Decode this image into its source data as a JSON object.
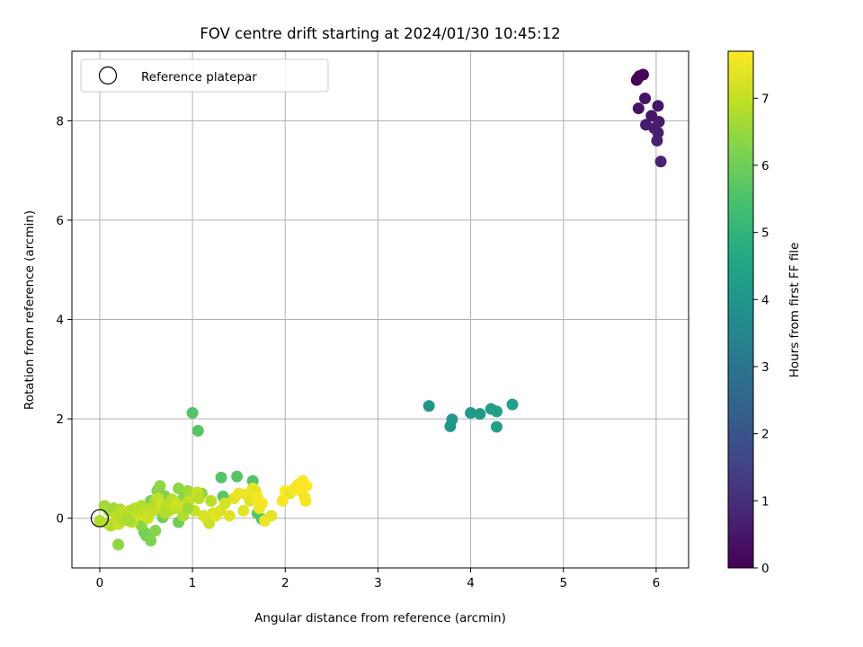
{
  "chart_data": {
    "type": "scatter",
    "title": "FOV centre drift starting at 2024/01/30 10:45:12",
    "xlabel": "Angular distance from reference (arcmin)",
    "ylabel": "Rotation from reference (arcmin)",
    "xlim": [
      -0.3,
      6.35
    ],
    "ylim": [
      -1.0,
      9.4
    ],
    "xticks": [
      0,
      1,
      2,
      3,
      4,
      5,
      6
    ],
    "yticks": [
      0,
      2,
      4,
      6,
      8
    ],
    "grid": true,
    "legend": {
      "placement": "upper left",
      "entries": [
        {
          "label": "Reference platepar",
          "marker": "open-circle",
          "x": 0,
          "y": 0
        }
      ]
    },
    "colorbar": {
      "label": "Hours from first FF file",
      "colormap": "viridis",
      "range": [
        0,
        7.7
      ],
      "ticks": [
        0,
        1,
        2,
        3,
        4,
        5,
        6,
        7
      ]
    },
    "series": [
      {
        "points": [
          [
            5.8,
            8.85,
            0.05
          ],
          [
            5.82,
            8.9,
            0.08
          ],
          [
            5.86,
            8.93,
            0.1
          ],
          [
            5.79,
            8.82,
            0.12
          ],
          [
            5.81,
            8.25,
            0.35
          ],
          [
            5.88,
            8.45,
            0.4
          ],
          [
            5.95,
            8.1,
            0.45
          ],
          [
            6.02,
            8.3,
            0.48
          ],
          [
            6.03,
            7.98,
            0.55
          ],
          [
            5.89,
            7.92,
            0.58
          ],
          [
            5.98,
            7.85,
            0.62
          ],
          [
            6.02,
            7.76,
            0.66
          ],
          [
            6.01,
            7.6,
            0.7
          ],
          [
            6.05,
            7.18,
            0.75
          ],
          [
            3.55,
            2.26,
            4.0
          ],
          [
            3.78,
            1.85,
            4.05
          ],
          [
            3.8,
            1.99,
            4.1
          ],
          [
            4.0,
            2.12,
            4.15
          ],
          [
            4.1,
            2.1,
            4.2
          ],
          [
            4.22,
            2.2,
            4.25
          ],
          [
            4.28,
            2.15,
            4.3
          ],
          [
            4.28,
            1.84,
            4.35
          ],
          [
            4.45,
            2.29,
            4.4
          ],
          [
            1.0,
            2.12,
            5.6
          ],
          [
            1.06,
            1.76,
            5.65
          ],
          [
            1.31,
            0.82,
            5.6
          ],
          [
            1.48,
            0.84,
            5.65
          ],
          [
            1.65,
            0.75,
            5.55
          ],
          [
            1.33,
            0.44,
            5.7
          ],
          [
            1.75,
            -0.02,
            5.5
          ],
          [
            1.7,
            0.1,
            5.6
          ],
          [
            0.48,
            -0.28,
            6.0
          ],
          [
            0.5,
            -0.35,
            6.1
          ],
          [
            0.55,
            -0.45,
            6.2
          ],
          [
            0.6,
            -0.25,
            6.3
          ],
          [
            0.2,
            -0.53,
            6.4
          ],
          [
            0.45,
            -0.15,
            6.3
          ],
          [
            0.55,
            0.35,
            6.1
          ],
          [
            0.62,
            0.55,
            6.3
          ],
          [
            0.65,
            0.65,
            6.4
          ],
          [
            0.7,
            0.45,
            6.2
          ],
          [
            0.75,
            0.3,
            6.5
          ],
          [
            0.85,
            0.6,
            6.4
          ],
          [
            0.9,
            0.4,
            6.3
          ],
          [
            0.95,
            0.55,
            6.6
          ],
          [
            1.0,
            0.45,
            6.6
          ],
          [
            1.1,
            0.5,
            6.4
          ],
          [
            0.85,
            -0.08,
            6.0
          ],
          [
            0.68,
            0.02,
            6.0
          ],
          [
            0.8,
            0.2,
            6.5
          ],
          [
            0.9,
            0.1,
            6.7
          ],
          [
            0.0,
            -0.05,
            6.8
          ],
          [
            0.05,
            0.25,
            6.6
          ],
          [
            0.08,
            -0.1,
            6.9
          ],
          [
            0.1,
            0.15,
            6.7
          ],
          [
            0.12,
            -0.15,
            6.8
          ],
          [
            0.15,
            0.2,
            6.6
          ],
          [
            0.18,
            0.05,
            6.9
          ],
          [
            0.2,
            -0.12,
            7.0
          ],
          [
            0.22,
            0.18,
            6.8
          ],
          [
            0.25,
            -0.05,
            6.9
          ],
          [
            0.28,
            0.12,
            7.0
          ],
          [
            0.3,
            0.0,
            6.7
          ],
          [
            0.32,
            0.15,
            6.9
          ],
          [
            0.35,
            -0.08,
            7.0
          ],
          [
            0.38,
            0.2,
            6.8
          ],
          [
            0.4,
            0.05,
            7.1
          ],
          [
            0.42,
            0.18,
            6.9
          ],
          [
            0.45,
            0.25,
            6.8
          ],
          [
            0.48,
            0.1,
            7.0
          ],
          [
            0.52,
            0.0,
            7.1
          ],
          [
            0.55,
            0.2,
            6.9
          ],
          [
            0.58,
            0.15,
            7.0
          ],
          [
            0.6,
            0.35,
            6.8
          ],
          [
            0.63,
            0.4,
            7.0
          ],
          [
            0.66,
            0.28,
            7.1
          ],
          [
            0.72,
            0.25,
            6.9
          ],
          [
            0.75,
            0.15,
            7.0
          ],
          [
            0.78,
            0.38,
            6.9
          ],
          [
            0.82,
            0.3,
            7.1
          ],
          [
            0.86,
            0.2,
            7.0
          ],
          [
            0.92,
            0.25,
            7.2
          ],
          [
            0.96,
            0.35,
            7.0
          ],
          [
            1.02,
            0.15,
            7.1
          ],
          [
            1.05,
            0.52,
            7.1
          ],
          [
            1.12,
            0.05,
            7.2
          ],
          [
            1.15,
            0.0,
            7.3
          ],
          [
            1.18,
            -0.1,
            7.1
          ],
          [
            1.22,
            0.1,
            7.2
          ],
          [
            1.25,
            0.05,
            7.4
          ],
          [
            1.3,
            0.15,
            7.3
          ],
          [
            1.35,
            0.3,
            7.2
          ],
          [
            1.4,
            0.05,
            7.3
          ],
          [
            1.45,
            0.4,
            7.4
          ],
          [
            1.5,
            0.5,
            7.5
          ],
          [
            1.55,
            0.15,
            7.4
          ],
          [
            1.58,
            0.48,
            7.5
          ],
          [
            1.62,
            0.35,
            7.4
          ],
          [
            1.65,
            0.6,
            7.5
          ],
          [
            1.68,
            0.55,
            7.4
          ],
          [
            1.7,
            0.42,
            7.6
          ],
          [
            1.72,
            0.2,
            7.5
          ],
          [
            1.75,
            0.3,
            7.6
          ],
          [
            1.78,
            -0.05,
            7.5
          ],
          [
            1.85,
            0.05,
            7.4
          ],
          [
            1.97,
            0.35,
            7.6
          ],
          [
            2.0,
            0.55,
            7.7
          ],
          [
            2.05,
            0.5,
            7.5
          ],
          [
            2.1,
            0.6,
            7.6
          ],
          [
            2.14,
            0.68,
            7.6
          ],
          [
            2.17,
            0.55,
            7.7
          ],
          [
            2.19,
            0.75,
            7.7
          ],
          [
            2.21,
            0.42,
            7.6
          ],
          [
            2.23,
            0.65,
            7.7
          ],
          [
            2.22,
            0.35,
            7.6
          ],
          [
            0.9,
            0.05,
            6.8
          ],
          [
            0.95,
            0.2,
            6.6
          ],
          [
            1.2,
            0.35,
            6.9
          ],
          [
            0.7,
            0.1,
            6.8
          ],
          [
            1.07,
            0.4,
            6.9
          ],
          [
            0.32,
            -0.05,
            6.7
          ]
        ]
      }
    ]
  }
}
